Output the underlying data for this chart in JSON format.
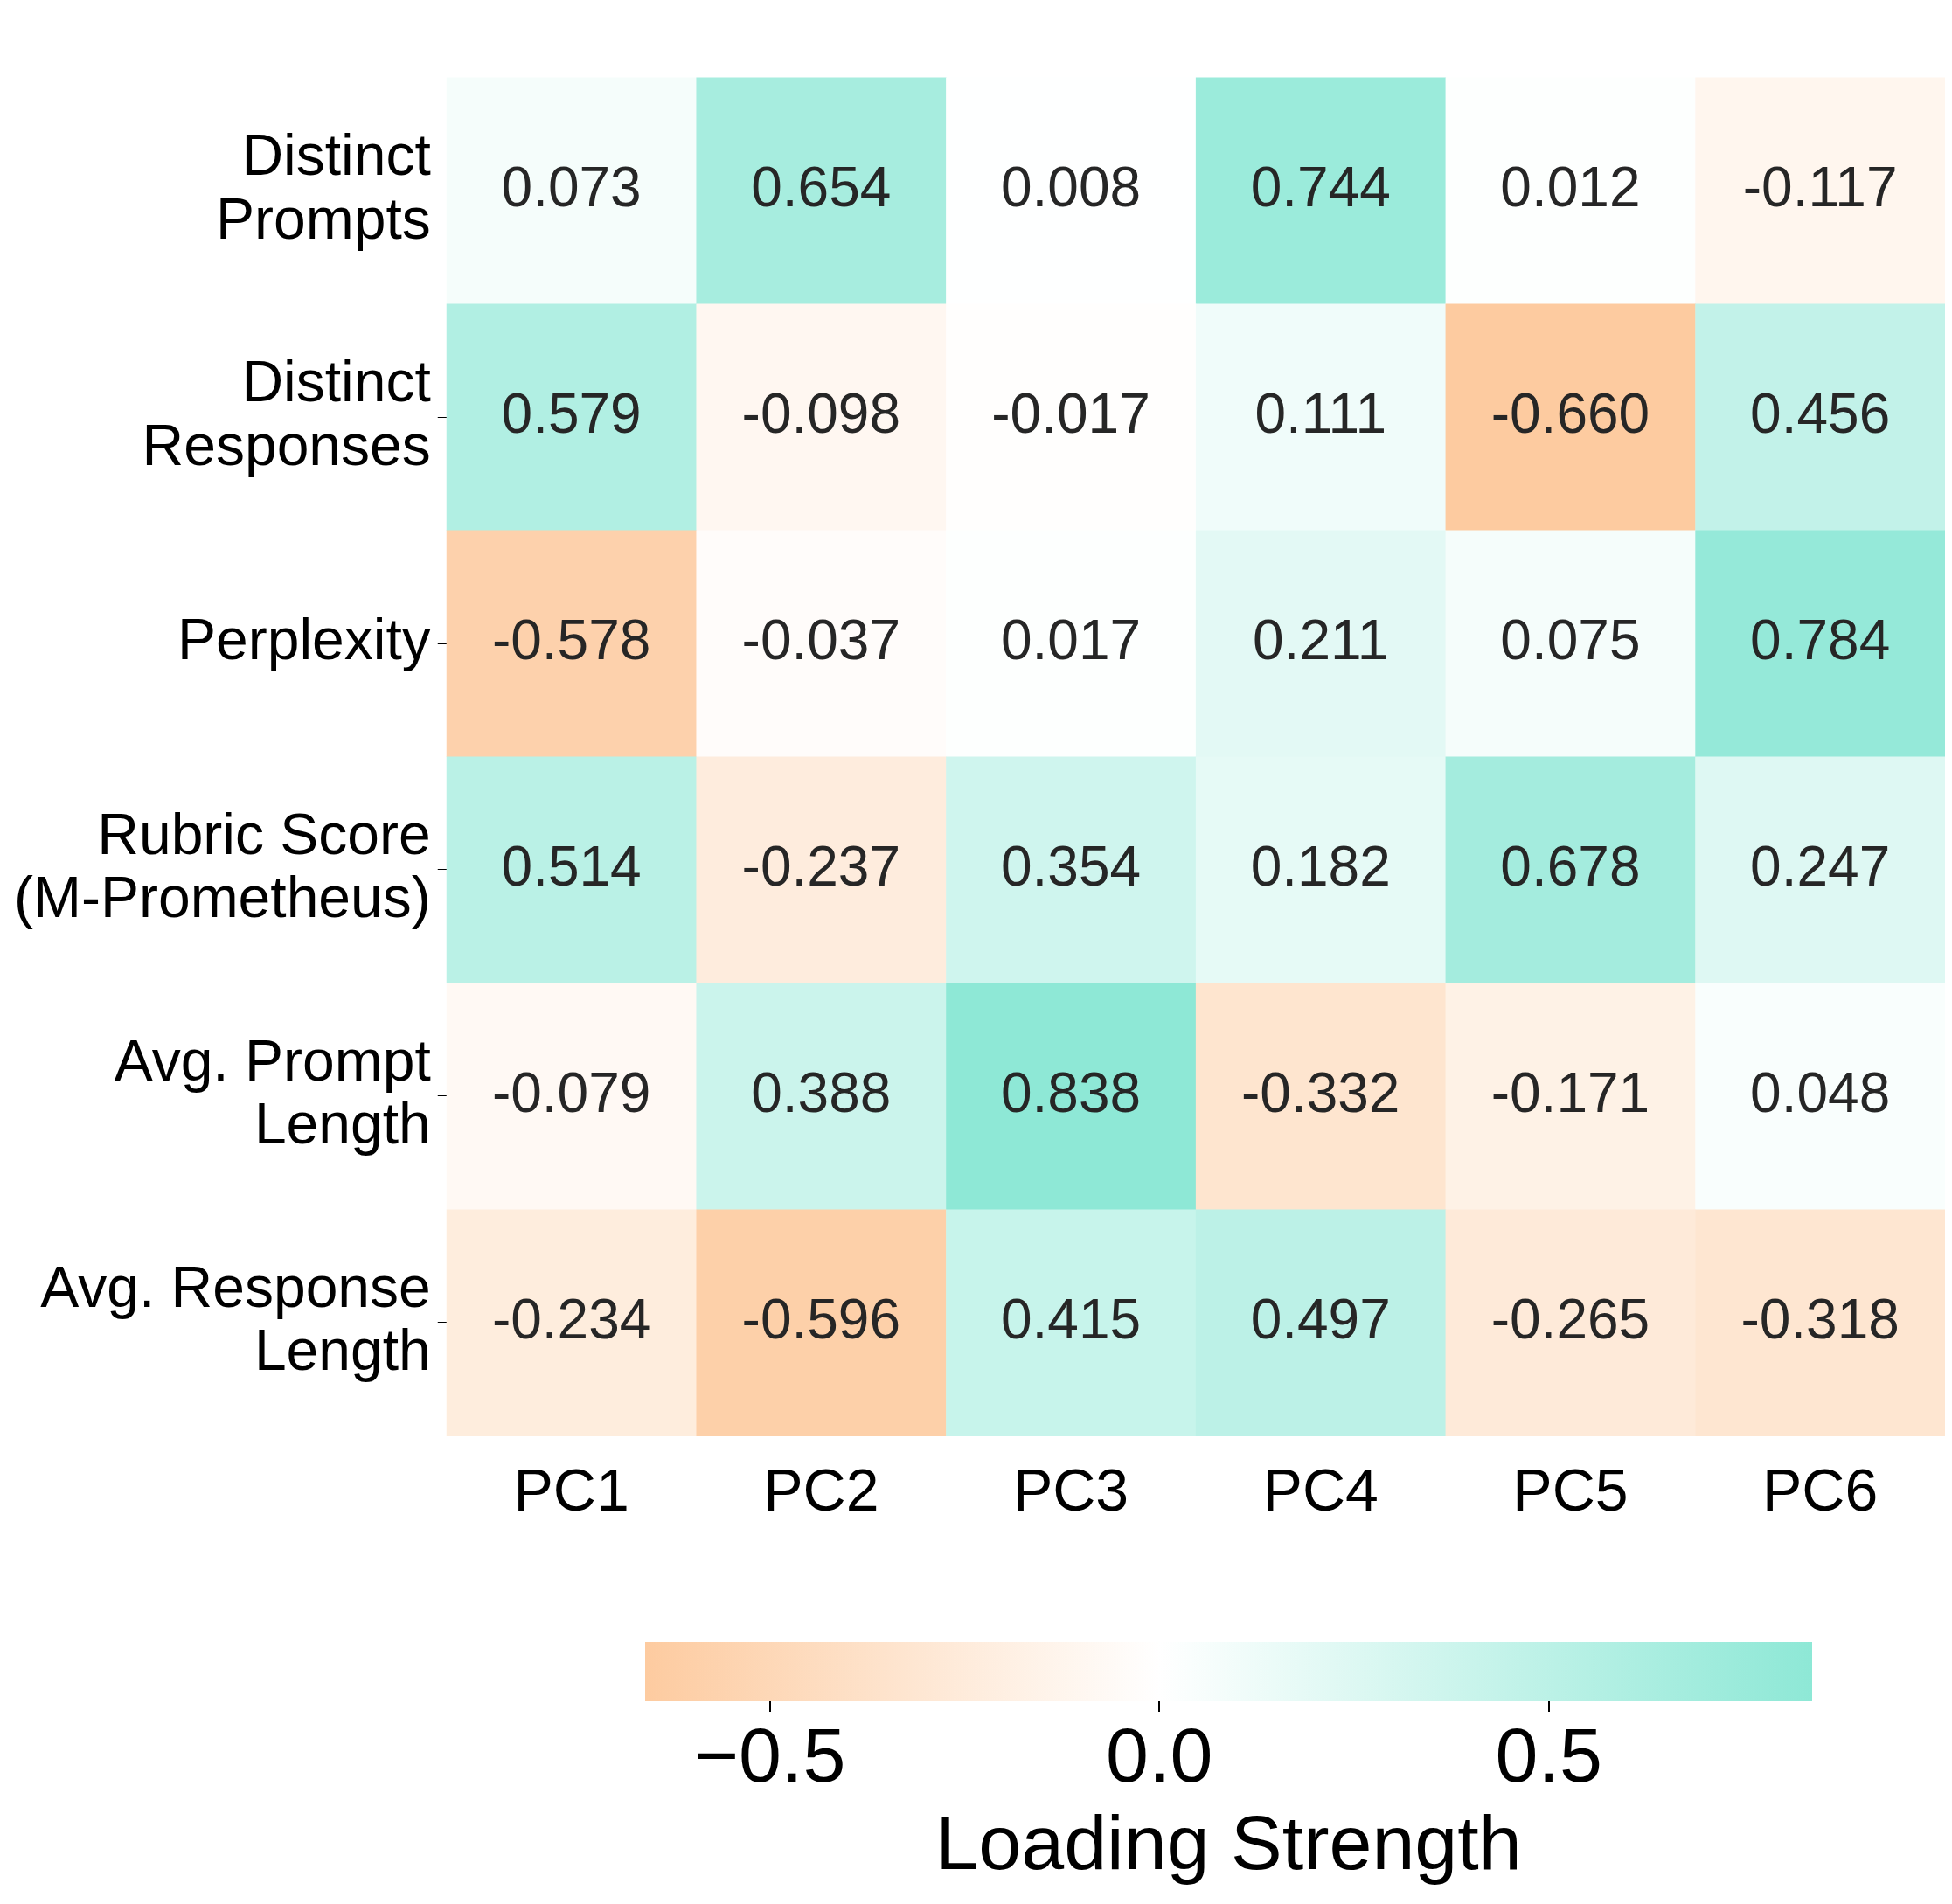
{
  "chart_data": {
    "type": "heatmap",
    "categories": [
      "PC1",
      "PC2",
      "PC3",
      "PC4",
      "PC5",
      "PC6"
    ],
    "y_categories": [
      "Distinct\nPrompts",
      "Distinct\nResponses",
      "Perplexity",
      "Rubric Score\n(M-Prometheus)",
      "Avg. Prompt\nLength",
      "Avg. Response\nLength"
    ],
    "cells": [
      [
        0.073,
        0.654,
        0.008,
        0.744,
        0.012,
        -0.117
      ],
      [
        0.579,
        -0.098,
        -0.017,
        0.111,
        -0.66,
        0.456
      ],
      [
        -0.578,
        -0.037,
        0.017,
        0.211,
        0.075,
        0.784
      ],
      [
        0.514,
        -0.237,
        0.354,
        0.182,
        0.678,
        0.247
      ],
      [
        -0.079,
        0.388,
        0.838,
        -0.332,
        -0.171,
        0.048
      ],
      [
        -0.234,
        -0.596,
        0.415,
        0.497,
        -0.265,
        -0.318
      ]
    ],
    "cell_labels": [
      [
        "0.073",
        "0.654",
        "0.008",
        "0.744",
        "0.012",
        "-0.117"
      ],
      [
        "0.579",
        "-0.098",
        "-0.017",
        "0.111",
        "-0.660",
        "0.456"
      ],
      [
        "-0.578",
        "-0.037",
        "0.017",
        "0.211",
        "0.075",
        "0.784"
      ],
      [
        "0.514",
        "-0.237",
        "0.354",
        "0.182",
        "0.678",
        "0.247"
      ],
      [
        "-0.079",
        "0.388",
        "0.838",
        "-0.332",
        "-0.171",
        "0.048"
      ],
      [
        "-0.234",
        "-0.596",
        "0.415",
        "0.497",
        "-0.265",
        "-0.318"
      ]
    ],
    "clabel": "Loading Strength",
    "clim": [
      -0.66,
      0.838
    ],
    "cticks": [
      {
        "value": -0.5,
        "label": "−0.5"
      },
      {
        "value": 0,
        "label": "0.0"
      },
      {
        "value": 0.5,
        "label": "0.5"
      }
    ]
  }
}
